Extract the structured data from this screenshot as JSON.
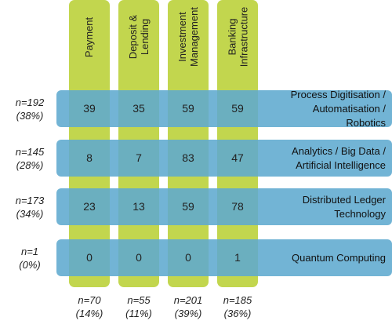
{
  "chart_data": {
    "type": "table",
    "columns": [
      {
        "label": "Payment",
        "n": "n=70",
        "pct": "(14%)"
      },
      {
        "label": "Deposit &\nLending",
        "n": "n=55",
        "pct": "(11%)"
      },
      {
        "label": "Investment\nManagement",
        "n": "n=201",
        "pct": "(39%)"
      },
      {
        "label": "Banking\nInfrastructure",
        "n": "n=185",
        "pct": "(36%)"
      }
    ],
    "rows": [
      {
        "label": "Process Digitisation /\nAutomatisation /\nRobotics",
        "n": "n=192",
        "pct": "(38%)",
        "values": [
          39,
          35,
          59,
          59
        ]
      },
      {
        "label": "Analytics / Big Data /\nArtificial Intelligence",
        "n": "n=145",
        "pct": "(28%)",
        "values": [
          8,
          7,
          83,
          47
        ]
      },
      {
        "label": "Distributed Ledger\nTechnology",
        "n": "n=173",
        "pct": "(34%)",
        "values": [
          23,
          13,
          59,
          78
        ]
      },
      {
        "label": "Quantum Computing",
        "n": "n=1",
        "pct": "(0%)",
        "values": [
          0,
          0,
          0,
          1
        ]
      }
    ],
    "colors": {
      "column": "#c2d64e",
      "row": "#5eaacf"
    }
  }
}
